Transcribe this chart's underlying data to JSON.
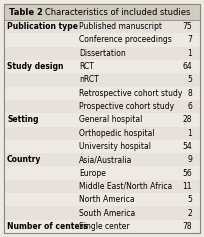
{
  "title_bold": "Table 2",
  "title_normal": "   Characteristics of included studies",
  "rows": [
    {
      "category": "Publication type",
      "label": "Published manuscript",
      "value": "75"
    },
    {
      "category": "",
      "label": "Conference proceedings",
      "value": "7"
    },
    {
      "category": "",
      "label": "Dissertation",
      "value": "1"
    },
    {
      "category": "Study design",
      "label": "RCT",
      "value": "64"
    },
    {
      "category": "",
      "label": "nRCT",
      "value": "5"
    },
    {
      "category": "",
      "label": "Retrospective cohort study",
      "value": "8"
    },
    {
      "category": "",
      "label": "Prospective cohort study",
      "value": "6"
    },
    {
      "category": "Setting",
      "label": "General hospital",
      "value": "28"
    },
    {
      "category": "",
      "label": "Orthopedic hospital",
      "value": "1"
    },
    {
      "category": "",
      "label": "University hospital",
      "value": "54"
    },
    {
      "category": "Country",
      "label": "Asia/Australia",
      "value": "9"
    },
    {
      "category": "",
      "label": "Europe",
      "value": "56"
    },
    {
      "category": "",
      "label": "Middle East/North Africa",
      "value": "11"
    },
    {
      "category": "",
      "label": "North America",
      "value": "5"
    },
    {
      "category": "",
      "label": "South America",
      "value": "2"
    },
    {
      "category": "Number of centers",
      "label": "Single center",
      "value": "78"
    }
  ],
  "bg_color": "#ede9e3",
  "header_bg": "#d0cbbe",
  "border_color": "#888888",
  "font_size": 5.5,
  "title_font_size": 6.0,
  "fig_width": 2.04,
  "fig_height": 2.37,
  "dpi": 100
}
